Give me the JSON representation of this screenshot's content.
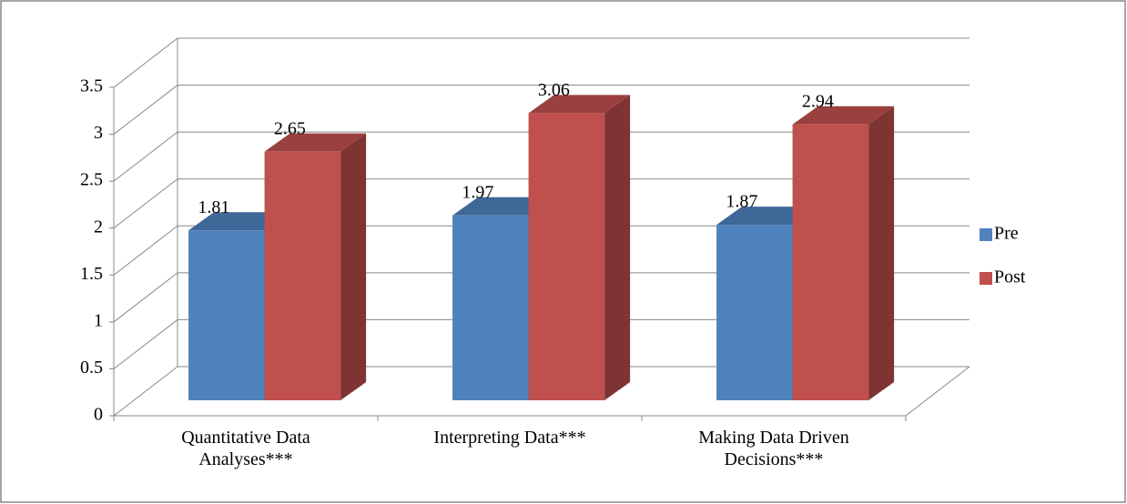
{
  "chart_data": {
    "type": "bar3d",
    "categories": [
      "Quantitative Data Analyses***",
      "Interpreting Data***",
      "Making Data Driven Decisions***"
    ],
    "series": [
      {
        "name": "Pre",
        "color": "#4f81bd",
        "values": [
          1.81,
          1.97,
          1.87
        ]
      },
      {
        "name": "Post",
        "color": "#c0504d",
        "values": [
          2.65,
          3.06,
          2.94
        ]
      }
    ],
    "ylim": [
      0,
      3.5
    ],
    "yticks": [
      0,
      0.5,
      1,
      1.5,
      2,
      2.5,
      3,
      3.5
    ],
    "grid": true,
    "legend": "right"
  }
}
